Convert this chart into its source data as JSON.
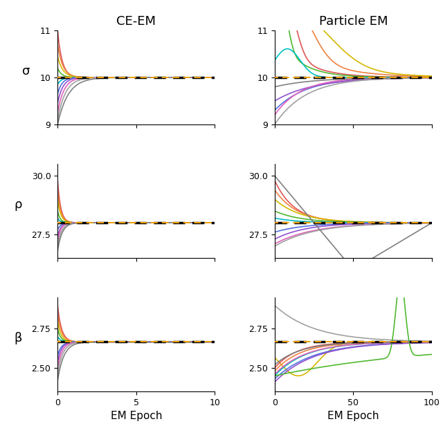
{
  "title_left": "CE-EM",
  "title_right": "Particle EM",
  "xlabel": "EM Epoch",
  "ylabels": [
    "σ",
    "ρ",
    "β"
  ],
  "sigma_true": 10.0,
  "rho_true": 28.0,
  "beta_true": 2.6667,
  "ce_em_xlim": [
    0,
    10
  ],
  "particle_xlim": [
    0,
    100
  ],
  "sigma_ylim": [
    9.0,
    11.0
  ],
  "rho_ylim": [
    26.5,
    30.5
  ],
  "beta_ylim": [
    2.35,
    2.95
  ],
  "sigma_yticks": [
    9,
    10,
    11
  ],
  "rho_yticks": [
    27.5,
    30.0
  ],
  "beta_yticks": [
    2.5,
    2.75
  ],
  "palette": [
    "#e05555",
    "#f08040",
    "#d4b800",
    "#50b830",
    "#00c0c0",
    "#5070e0",
    "#9050d0",
    "#e060b8",
    "#a0a0a0",
    "#808080"
  ],
  "dashed_linewidth": 2.5,
  "line_lw": 1.2
}
